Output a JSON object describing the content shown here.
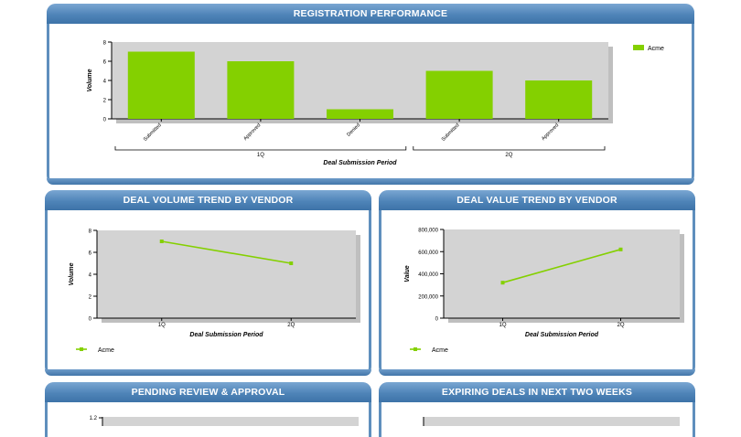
{
  "panels": {
    "registration": {
      "title": "REGISTRATION PERFORMANCE"
    },
    "volume_trend": {
      "title": "DEAL VOLUME TREND BY VENDOR"
    },
    "value_trend": {
      "title": "DEAL VALUE TREND BY VENDOR"
    },
    "pending": {
      "title": "PENDING REVIEW & APPROVAL"
    },
    "expiring": {
      "title": "EXPIRING DEALS IN NEXT TWO WEEKS"
    }
  },
  "colors": {
    "series": "#84d000",
    "plot_bg": "#d3d3d3",
    "header": "#4f84b8"
  },
  "chart_data": [
    {
      "type": "bar",
      "title": "REGISTRATION PERFORMANCE",
      "categories": [
        "Submitted",
        "Approved",
        "Denied",
        "Submitted",
        "Approved"
      ],
      "groups": [
        {
          "label": "1Q",
          "categories": [
            "Submitted",
            "Approved",
            "Denied"
          ]
        },
        {
          "label": "2Q",
          "categories": [
            "Submitted",
            "Approved"
          ]
        }
      ],
      "series": [
        {
          "name": "Acme",
          "values": [
            7,
            6,
            1,
            5,
            4
          ]
        }
      ],
      "xlabel": "Deal Submission Period",
      "ylabel": "Volume",
      "ylim": [
        0,
        8
      ],
      "yticks": [
        "0",
        "2",
        "4",
        "6",
        "8"
      ],
      "legend": "top-right"
    },
    {
      "type": "line",
      "title": "DEAL VOLUME TREND BY VENDOR",
      "x": [
        "1Q",
        "2Q"
      ],
      "series": [
        {
          "name": "Acme",
          "values": [
            7,
            5
          ]
        }
      ],
      "xlabel": "Deal Submission Period",
      "ylabel": "Volume",
      "ylim": [
        0,
        8
      ],
      "yticks": [
        "0",
        "2",
        "4",
        "6",
        "8"
      ],
      "legend": "bottom-left"
    },
    {
      "type": "line",
      "title": "DEAL VALUE TREND BY VENDOR",
      "x": [
        "1Q",
        "2Q"
      ],
      "series": [
        {
          "name": "Acme",
          "values": [
            320000,
            620000
          ]
        }
      ],
      "xlabel": "Deal Submission Period",
      "ylabel": "Value",
      "ylim": [
        0,
        800000
      ],
      "yticks": [
        "0",
        "200,000",
        "400,000",
        "600,000",
        "800,000"
      ],
      "legend": "bottom-left"
    },
    {
      "type": "bar",
      "title": "PENDING REVIEW & APPROVAL",
      "yticks": [
        "1.2"
      ]
    }
  ]
}
